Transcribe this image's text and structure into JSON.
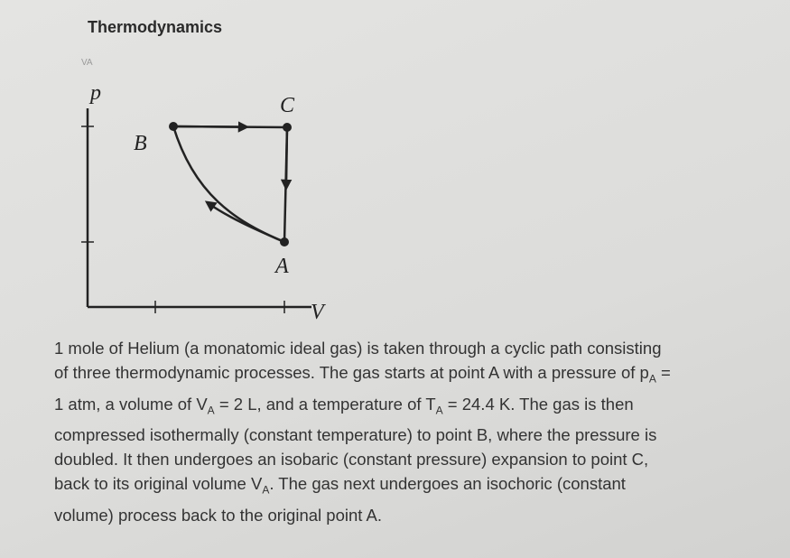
{
  "header": {
    "title": "Thermodynamics",
    "tab": "VA"
  },
  "diagram": {
    "y_axis": "p",
    "x_axis": "V",
    "points": [
      "B",
      "C",
      "A"
    ]
  },
  "paragraph": [
    [
      {
        "text": "1 mole of Helium (a monatomic ideal gas) is taken through a cyclic path consisting"
      }
    ],
    [
      {
        "text": "of three thermodynamic processes. The gas starts at point A with a pressure of p"
      },
      {
        "sub": "A"
      },
      {
        "text": " ="
      }
    ],
    [
      {
        "text": "1 atm, a volume of V"
      },
      {
        "sub": "A"
      },
      {
        "text": " = 2 L, and a temperature of T"
      },
      {
        "sub": "A"
      },
      {
        "text": " = 24.4 K. The gas is then"
      }
    ],
    [
      {
        "text": "compressed isothermally (constant temperature) to point B, where the pressure is"
      }
    ],
    [
      {
        "text": "doubled. It then undergoes an isobaric (constant pressure) expansion to point C,"
      }
    ],
    [
      {
        "text": "back to its original volume V"
      },
      {
        "sub": "A"
      },
      {
        "text": ". The gas next undergoes an isochoric (constant"
      }
    ],
    [
      {
        "text": "volume) process back to the original point A."
      }
    ]
  ]
}
